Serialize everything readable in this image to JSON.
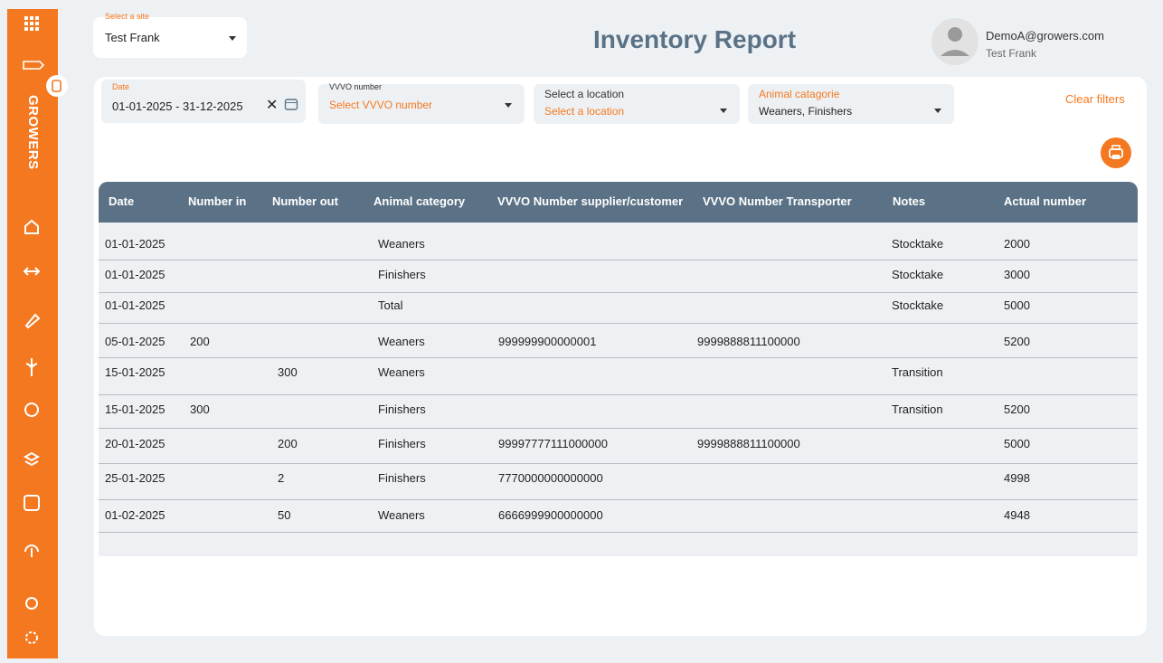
{
  "sidebar": {
    "brand": "GROWERS"
  },
  "header": {
    "site_label": "Select a site",
    "site_value": "Test Frank",
    "title": "Inventory Report",
    "user_email": "DemoA@growers.com",
    "user_name": "Test Frank"
  },
  "filters": {
    "date_label": "Date",
    "date_value": "01-01-2025 - 31-12-2025",
    "vvvo_label": "VVVO number",
    "vvvo_placeholder": "Select VVVO number",
    "location_label": "Select a location",
    "location_placeholder": "Select a location",
    "category_label": "Animal catagorie",
    "category_value": "Weaners, Finishers",
    "clear": "Clear filters"
  },
  "table": {
    "columns": [
      "Date",
      "Number in",
      "Number out",
      "Animal category",
      "VVVO Number supplier/customer",
      "VVVO Number Transporter",
      "Notes",
      "Actual number"
    ],
    "rows": [
      [
        "01-01-2025",
        null,
        null,
        "Weaners",
        null,
        null,
        "Stocktake",
        "2000"
      ],
      [
        "01-01-2025",
        null,
        null,
        "Finishers",
        null,
        null,
        "Stocktake",
        "3000"
      ],
      [
        "01-01-2025",
        null,
        null,
        "Total",
        null,
        null,
        "Stocktake",
        "5000"
      ],
      [
        "05-01-2025",
        "200",
        null,
        "Weaners",
        "999999900000001",
        "9999888811100000",
        null,
        "5200"
      ],
      [
        "15-01-2025",
        null,
        "300",
        "Weaners",
        null,
        null,
        "Transition",
        null
      ],
      [
        "15-01-2025",
        "300",
        null,
        "Finishers",
        null,
        null,
        "Transition",
        "5200"
      ],
      [
        "20-01-2025",
        null,
        "200",
        "Finishers",
        "99997777111000000",
        "9999888811100000",
        null,
        "5000"
      ],
      [
        "25-01-2025",
        null,
        "2",
        "Finishers",
        "7770000000000000",
        null,
        null,
        "4998"
      ],
      [
        "01-02-2025",
        null,
        "50",
        "Weaners",
        "6666999900000000",
        null,
        null,
        "4948"
      ]
    ]
  }
}
